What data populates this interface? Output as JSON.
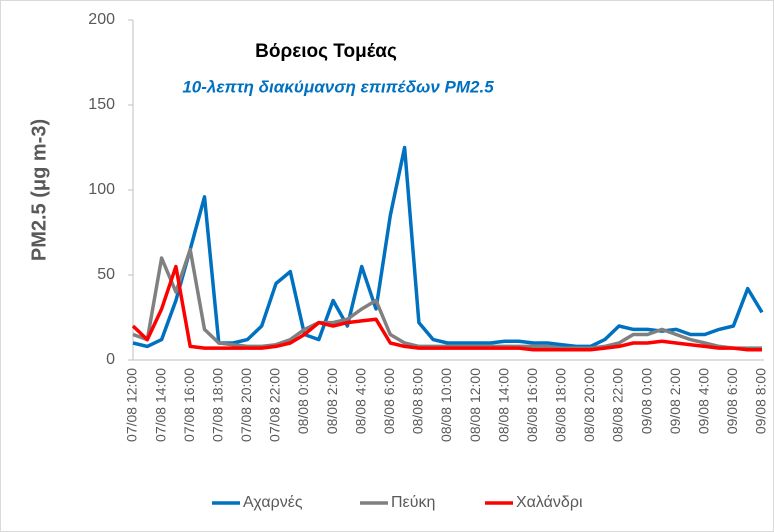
{
  "chart_data": {
    "type": "line",
    "title": "Βόρειος Τομέας",
    "subtitle": "10-λεπτη διακύμανση επιπέδων PM2.5",
    "y_label": "PM2.5 (μg m-3)",
    "categories": [
      "07/08 12:00",
      null,
      "07/08 14:00",
      null,
      "07/08 16:00",
      null,
      "07/08 18:00",
      null,
      "07/08 20:00",
      null,
      "07/08 22:00",
      null,
      "08/08 0:00",
      null,
      "08/08 2:00",
      null,
      "08/08 4:00",
      null,
      "08/08 6:00",
      null,
      "08/08 8:00",
      null,
      "08/08 10:00",
      null,
      "08/08 12:00",
      null,
      "08/08 14:00",
      null,
      "08/08 16:00",
      null,
      "08/08 18:00",
      null,
      "08/08 20:00",
      null,
      "08/08 22:00",
      null,
      "09/08 0:00",
      null,
      "09/08 2:00",
      null,
      "09/08 4:00",
      null,
      "09/08 6:00",
      null,
      "09/08 8:00"
    ],
    "series": [
      {
        "name": "Αχαρνές",
        "color": "#0070c0",
        "values": [
          10,
          8,
          12,
          35,
          65,
          96,
          10,
          10,
          12,
          20,
          45,
          52,
          15,
          12,
          35,
          20,
          55,
          30,
          85,
          125,
          22,
          12,
          10,
          10,
          10,
          10,
          11,
          11,
          10,
          10,
          9,
          8,
          8,
          12,
          20,
          18,
          18,
          17,
          18,
          15,
          15,
          18,
          20,
          42,
          28
        ]
      },
      {
        "name": "Πεύκη",
        "color": "#808080",
        "values": [
          15,
          12,
          60,
          40,
          65,
          18,
          10,
          9,
          8,
          8,
          9,
          12,
          18,
          22,
          22,
          24,
          30,
          35,
          15,
          10,
          8,
          8,
          8,
          8,
          8,
          8,
          8,
          8,
          8,
          8,
          7,
          7,
          7,
          8,
          10,
          15,
          15,
          18,
          15,
          12,
          10,
          8,
          7,
          7,
          7
        ]
      },
      {
        "name": "Χαλάνδρι",
        "color": "#ff0000",
        "values": [
          20,
          12,
          30,
          55,
          8,
          7,
          7,
          7,
          7,
          7,
          8,
          10,
          15,
          22,
          20,
          22,
          23,
          24,
          10,
          8,
          7,
          7,
          7,
          7,
          7,
          7,
          7,
          7,
          6,
          6,
          6,
          6,
          6,
          7,
          8,
          10,
          10,
          11,
          10,
          9,
          8,
          7,
          7,
          6,
          6
        ]
      }
    ],
    "ylim": [
      0,
      200
    ],
    "yticks": [
      0,
      50,
      100,
      150,
      200
    ],
    "legend": "bottom"
  }
}
